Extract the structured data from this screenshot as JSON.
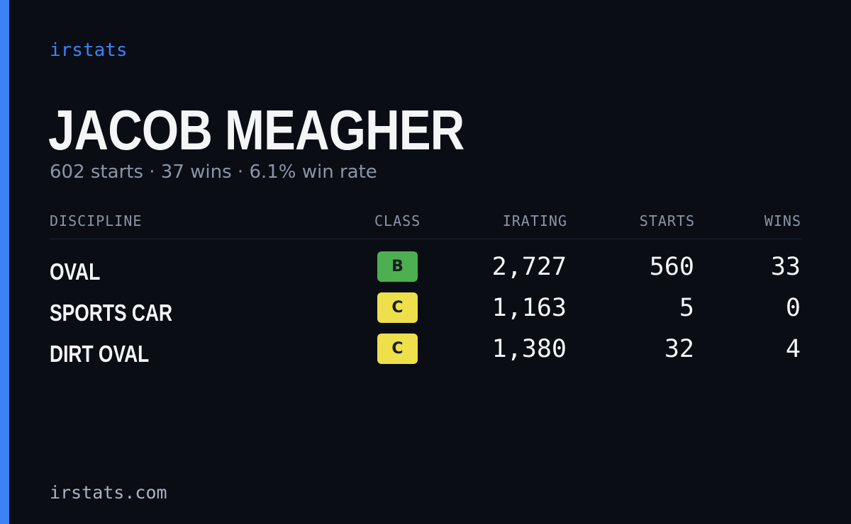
{
  "brand": "irstats",
  "player": {
    "name": "JACOB MEAGHER",
    "summary": "602 starts · 37 wins · 6.1% win rate"
  },
  "table": {
    "headers": {
      "discipline": "DISCIPLINE",
      "class": "CLASS",
      "irating": "IRATING",
      "starts": "STARTS",
      "wins": "WINS"
    },
    "rows": [
      {
        "discipline": "OVAL",
        "class": "B",
        "class_color": "#4caf50",
        "irating": "2,727",
        "starts": "560",
        "wins": "33"
      },
      {
        "discipline": "SPORTS CAR",
        "class": "C",
        "class_color": "#ede04a",
        "irating": "1,163",
        "starts": "5",
        "wins": "0"
      },
      {
        "discipline": "DIRT OVAL",
        "class": "C",
        "class_color": "#ede04a",
        "irating": "1,380",
        "starts": "32",
        "wins": "4"
      }
    ]
  },
  "footer": "irstats.com",
  "colors": {
    "background": "#0a0d14",
    "accent": "#3b82f6",
    "text_primary": "#f4f5f7",
    "text_muted": "#8b95a7"
  }
}
